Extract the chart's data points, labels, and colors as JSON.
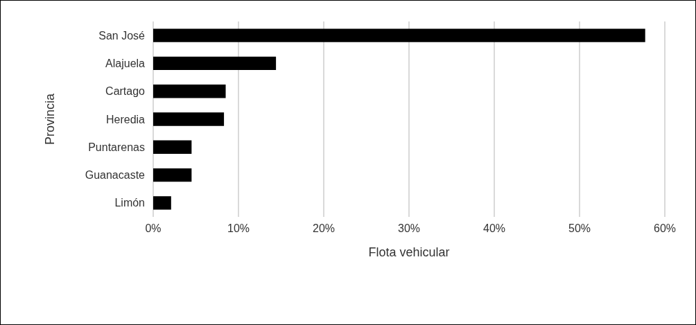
{
  "chart_data": {
    "type": "bar",
    "orientation": "horizontal",
    "xlabel": "Flota vehicular",
    "ylabel": "Provincia",
    "categories": [
      "San José",
      "Alajuela",
      "Cartago",
      "Heredia",
      "Puntarenas",
      "Guanacaste",
      "Limón"
    ],
    "values": [
      57.7,
      14.4,
      8.5,
      8.3,
      4.5,
      4.5,
      2.1
    ],
    "color": "#000000",
    "xlim": [
      0,
      60
    ],
    "xticks": [
      {
        "value": 0,
        "label": "0%"
      },
      {
        "value": 10,
        "label": "10%"
      },
      {
        "value": 20,
        "label": "20%"
      },
      {
        "value": 30,
        "label": "30%"
      },
      {
        "value": 40,
        "label": "40%"
      },
      {
        "value": 50,
        "label": "50%"
      },
      {
        "value": 60,
        "label": "60%"
      }
    ],
    "grid": "x"
  }
}
